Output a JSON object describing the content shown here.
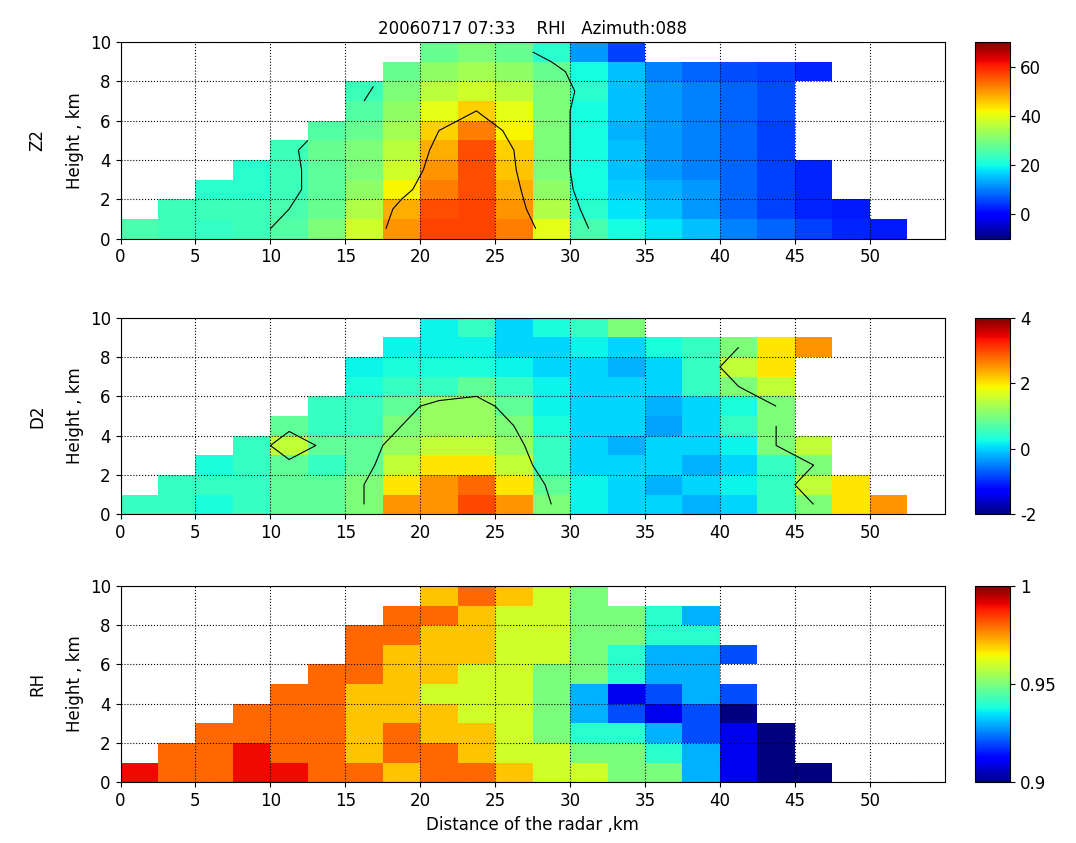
{
  "chart_data": [
    {
      "type": "heatmap",
      "name": "Z2",
      "title": "20060717 07:33    RHI   Azimuth:088",
      "ylabel": "Height , km",
      "x": [
        1.25,
        3.75,
        6.25,
        8.75,
        11.25,
        13.75,
        16.25,
        18.75,
        21.25,
        23.75,
        26.25,
        28.75,
        31.25,
        33.75,
        36.25,
        38.75,
        41.25,
        43.75,
        46.25,
        48.75,
        51.25,
        53.75
      ],
      "y": [
        0.5,
        1.5,
        2.5,
        3.5,
        4.5,
        5.5,
        6.5,
        7.5,
        8.5,
        9.5
      ],
      "cells": [
        [
          25,
          24,
          23,
          24,
          26,
          30,
          38,
          50,
          57,
          57,
          52,
          40,
          25,
          20,
          18,
          15,
          10,
          8,
          5,
          3,
          2,
          null
        ],
        [
          null,
          24,
          24,
          24,
          25,
          28,
          35,
          48,
          56,
          57,
          50,
          35,
          22,
          18,
          15,
          12,
          8,
          5,
          3,
          2,
          null,
          null
        ],
        [
          null,
          null,
          22,
          22,
          24,
          27,
          32,
          42,
          52,
          56,
          48,
          32,
          20,
          16,
          14,
          12,
          8,
          5,
          3,
          null,
          null,
          null
        ],
        [
          null,
          null,
          null,
          22,
          24,
          27,
          30,
          38,
          50,
          56,
          46,
          30,
          20,
          15,
          12,
          10,
          8,
          5,
          3,
          null,
          null,
          null
        ],
        [
          null,
          null,
          null,
          null,
          24,
          28,
          30,
          36,
          48,
          56,
          45,
          30,
          20,
          15,
          12,
          10,
          8,
          5,
          null,
          null,
          null,
          null
        ],
        [
          null,
          null,
          null,
          null,
          null,
          26,
          28,
          34,
          45,
          52,
          42,
          30,
          20,
          14,
          12,
          10,
          8,
          5,
          null,
          null,
          null,
          null
        ],
        [
          null,
          null,
          null,
          null,
          null,
          null,
          26,
          32,
          40,
          45,
          40,
          30,
          20,
          15,
          12,
          10,
          8,
          6,
          null,
          null,
          null,
          null
        ],
        [
          null,
          null,
          null,
          null,
          null,
          null,
          24,
          30,
          36,
          38,
          36,
          30,
          22,
          15,
          12,
          10,
          8,
          6,
          null,
          null,
          null,
          null
        ],
        [
          null,
          null,
          null,
          null,
          null,
          null,
          null,
          28,
          32,
          34,
          32,
          28,
          20,
          15,
          10,
          8,
          6,
          5,
          3,
          null,
          null,
          null
        ],
        [
          null,
          null,
          null,
          null,
          null,
          null,
          null,
          null,
          28,
          30,
          28,
          22,
          12,
          5,
          null,
          null,
          null,
          null,
          null,
          null,
          null,
          null
        ]
      ],
      "contour_levels": [
        25,
        45
      ],
      "xlim": [
        0,
        55
      ],
      "xticks": [
        0,
        5,
        10,
        15,
        20,
        25,
        30,
        35,
        40,
        45,
        50
      ],
      "ylim": [
        0,
        10
      ],
      "yticks": [
        0,
        2,
        4,
        6,
        8,
        10
      ],
      "colorbar_range": [
        -10,
        70
      ],
      "colorbar_ticks": [
        0,
        20,
        40,
        60
      ],
      "grid": true
    },
    {
      "type": "heatmap",
      "name": "D2",
      "ylabel": "Height , km",
      "x": [
        1.25,
        3.75,
        6.25,
        8.75,
        11.25,
        13.75,
        16.25,
        18.75,
        21.25,
        23.75,
        26.25,
        28.75,
        31.25,
        33.75,
        36.25,
        38.75,
        41.25,
        43.75,
        46.25,
        48.75,
        51.25,
        53.75
      ],
      "y": [
        0.5,
        1.5,
        2.5,
        3.5,
        4.5,
        5.5,
        6.5,
        7.5,
        8.5,
        9.5
      ],
      "cells": [
        [
          0.5,
          0.5,
          0.3,
          0.5,
          0.8,
          0.8,
          1.0,
          2.5,
          2.5,
          3.0,
          2.5,
          1.0,
          0.2,
          0.0,
          0.0,
          -0.2,
          0.0,
          0.5,
          1.0,
          2.0,
          2.5,
          null
        ],
        [
          null,
          0.5,
          0.5,
          0.5,
          0.8,
          0.8,
          1.0,
          2.0,
          2.5,
          2.8,
          2.0,
          0.8,
          0.2,
          0.0,
          -0.2,
          0.0,
          0.2,
          0.5,
          1.5,
          2.0,
          null,
          null
        ],
        [
          null,
          null,
          0.3,
          0.5,
          0.8,
          0.5,
          0.8,
          1.5,
          2.0,
          2.0,
          1.5,
          0.5,
          0.0,
          0.0,
          0.0,
          -0.2,
          0.0,
          0.5,
          1.0,
          null,
          null,
          null
        ],
        [
          null,
          null,
          null,
          0.5,
          1.5,
          0.8,
          0.8,
          1.2,
          1.5,
          1.5,
          1.2,
          0.5,
          0.0,
          -0.2,
          0.0,
          0.0,
          0.2,
          1.0,
          1.5,
          null,
          null,
          null
        ],
        [
          null,
          null,
          null,
          null,
          0.8,
          0.5,
          0.5,
          1.0,
          1.2,
          1.2,
          1.0,
          0.3,
          0.0,
          0.0,
          -0.3,
          0.0,
          0.5,
          1.0,
          null,
          null,
          null,
          null
        ],
        [
          null,
          null,
          null,
          null,
          null,
          0.5,
          0.5,
          0.8,
          1.2,
          1.2,
          0.8,
          0.2,
          0.0,
          0.0,
          -0.2,
          0.0,
          0.3,
          1.0,
          null,
          null,
          null,
          null
        ],
        [
          null,
          null,
          null,
          null,
          null,
          null,
          0.3,
          0.5,
          0.5,
          0.8,
          0.5,
          0.2,
          0.0,
          0.0,
          0.0,
          0.5,
          1.0,
          1.5,
          null,
          null,
          null,
          null
        ],
        [
          null,
          null,
          null,
          null,
          null,
          null,
          0.2,
          0.3,
          0.3,
          0.3,
          0.2,
          0.0,
          0.0,
          -0.2,
          0.0,
          0.5,
          1.5,
          2.0,
          null,
          null,
          null,
          null
        ],
        [
          null,
          null,
          null,
          null,
          null,
          null,
          null,
          0.2,
          0.2,
          0.2,
          0.0,
          0.0,
          0.2,
          0.0,
          0.3,
          0.5,
          1.0,
          2.0,
          2.5,
          null,
          null,
          null
        ],
        [
          null,
          null,
          null,
          null,
          null,
          null,
          null,
          null,
          0.2,
          0.5,
          0.0,
          0.3,
          0.5,
          1.0,
          null,
          null,
          null,
          null,
          null,
          null,
          null,
          null
        ]
      ],
      "contour_levels": [
        1.0
      ],
      "xlim": [
        0,
        55
      ],
      "xticks": [
        0,
        5,
        10,
        15,
        20,
        25,
        30,
        35,
        40,
        45,
        50
      ],
      "ylim": [
        0,
        10
      ],
      "yticks": [
        0,
        2,
        4,
        6,
        8,
        10
      ],
      "colorbar_range": [
        -2,
        4
      ],
      "colorbar_ticks": [
        -2,
        0,
        2,
        4
      ],
      "grid": true
    },
    {
      "type": "heatmap",
      "name": "RH",
      "ylabel": "Height , km",
      "xlabel": "Distance of the radar ,km",
      "x": [
        1.25,
        3.75,
        6.25,
        8.75,
        11.25,
        13.75,
        16.25,
        18.75,
        21.25,
        23.75,
        26.25,
        28.75,
        31.25,
        33.75,
        36.25,
        38.75,
        41.25,
        43.75,
        46.25,
        48.75,
        51.25,
        53.75
      ],
      "y": [
        0.5,
        1.5,
        2.5,
        3.5,
        4.5,
        5.5,
        6.5,
        7.5,
        8.5,
        9.5
      ],
      "cells": [
        [
          0.99,
          0.98,
          0.98,
          0.99,
          0.99,
          0.98,
          0.98,
          0.97,
          0.98,
          0.98,
          0.97,
          0.96,
          0.96,
          0.95,
          0.95,
          0.93,
          0.91,
          0.9,
          0.9,
          null,
          null,
          null
        ],
        [
          null,
          0.98,
          0.98,
          0.99,
          0.98,
          0.98,
          0.97,
          0.98,
          0.98,
          0.97,
          0.96,
          0.96,
          0.95,
          0.95,
          0.94,
          0.93,
          0.91,
          0.9,
          null,
          null,
          null,
          null
        ],
        [
          null,
          null,
          0.98,
          0.98,
          0.98,
          0.98,
          0.97,
          0.98,
          0.97,
          0.97,
          0.96,
          0.95,
          0.94,
          0.94,
          0.93,
          0.92,
          0.91,
          0.9,
          null,
          null,
          null,
          null
        ],
        [
          null,
          null,
          null,
          0.98,
          0.98,
          0.98,
          0.97,
          0.97,
          0.97,
          0.96,
          0.96,
          0.95,
          0.93,
          0.92,
          0.91,
          0.92,
          0.9,
          null,
          null,
          null,
          null,
          null
        ],
        [
          null,
          null,
          null,
          null,
          0.98,
          0.98,
          0.97,
          0.97,
          0.96,
          0.96,
          0.96,
          0.95,
          0.93,
          0.91,
          0.92,
          0.93,
          0.92,
          null,
          null,
          null,
          null,
          null
        ],
        [
          null,
          null,
          null,
          null,
          null,
          0.98,
          0.98,
          0.97,
          0.97,
          0.96,
          0.96,
          0.95,
          0.95,
          0.94,
          0.93,
          0.93,
          null,
          null,
          null,
          null,
          null,
          null
        ],
        [
          null,
          null,
          null,
          null,
          null,
          null,
          0.98,
          0.97,
          0.97,
          0.97,
          0.96,
          0.96,
          0.95,
          0.94,
          0.93,
          0.93,
          0.92,
          null,
          null,
          null,
          null,
          null
        ],
        [
          null,
          null,
          null,
          null,
          null,
          null,
          0.98,
          0.98,
          0.97,
          0.97,
          0.96,
          0.96,
          0.95,
          0.95,
          0.94,
          0.94,
          null,
          null,
          null,
          null,
          null,
          null
        ],
        [
          null,
          null,
          null,
          null,
          null,
          null,
          null,
          0.98,
          0.98,
          0.97,
          0.96,
          0.96,
          0.95,
          0.95,
          0.94,
          0.93,
          null,
          null,
          null,
          null,
          null,
          null
        ],
        [
          null,
          null,
          null,
          null,
          null,
          null,
          null,
          null,
          0.97,
          0.98,
          0.97,
          0.96,
          0.95,
          null,
          null,
          null,
          null,
          null,
          null,
          null,
          null,
          null
        ]
      ],
      "xlim": [
        0,
        55
      ],
      "xticks": [
        0,
        5,
        10,
        15,
        20,
        25,
        30,
        35,
        40,
        45,
        50
      ],
      "ylim": [
        0,
        10
      ],
      "yticks": [
        0,
        2,
        4,
        6,
        8,
        10
      ],
      "colorbar_range": [
        0.9,
        1
      ],
      "colorbar_ticks": [
        0.9,
        0.95,
        1
      ],
      "grid": true
    }
  ]
}
